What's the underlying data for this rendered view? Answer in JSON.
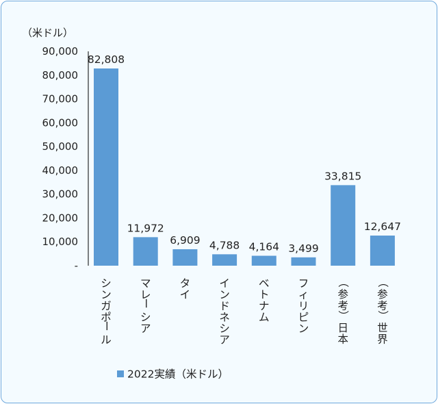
{
  "chart_data": {
    "type": "bar",
    "unit_label": "（米ドル）",
    "categories": [
      "シンガポール",
      "マレーシア",
      "タイ",
      "インドネシア",
      "ベトナム",
      "フィリピン",
      "（参考）日本",
      "（参考）世界"
    ],
    "series": [
      {
        "name": "2022実績（米ドル）",
        "values": [
          82808,
          11972,
          6909,
          4788,
          4164,
          3499,
          33815,
          12647
        ]
      }
    ],
    "data_labels": [
      "82,808",
      "11,972",
      "6,909",
      "4,788",
      "4,164",
      "3,499",
      "33,815",
      "12,647"
    ],
    "ylim": [
      0,
      90000
    ],
    "yticks": [
      0,
      10000,
      20000,
      30000,
      40000,
      50000,
      60000,
      70000,
      80000,
      90000
    ],
    "ytick_labels": [
      "-",
      "10,000",
      "20,000",
      "30,000",
      "40,000",
      "50,000",
      "60,000",
      "70,000",
      "80,000",
      "90,000"
    ],
    "grid": false,
    "legend_position": "bottom",
    "bar_color": "#5b9bd5"
  }
}
